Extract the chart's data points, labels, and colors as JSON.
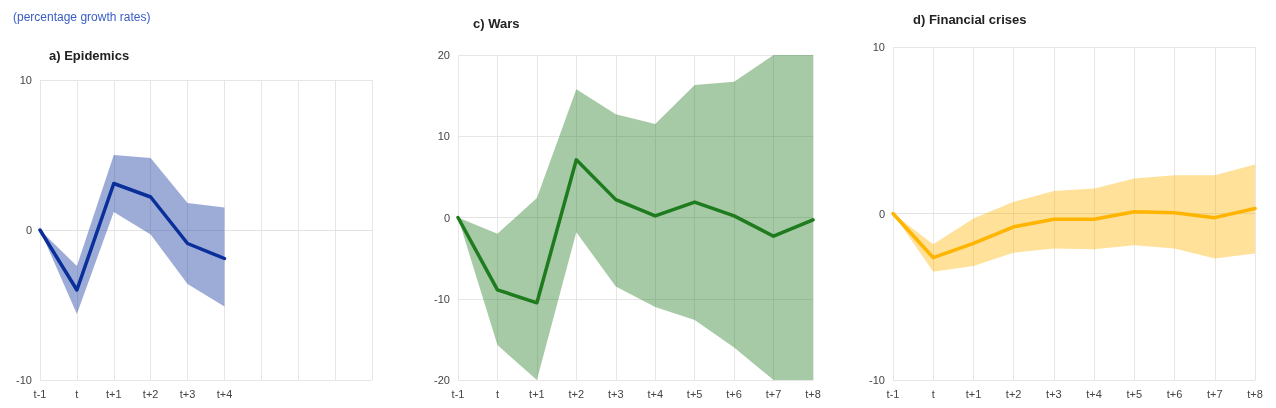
{
  "chart_data": [
    {
      "type": "line",
      "title": "a) Epidemics",
      "subtitle": "(percentage growth rates)",
      "categories": [
        "t-1",
        "t",
        "t+1",
        "t+2",
        "t+3",
        "t+4",
        null,
        null,
        null,
        null
      ],
      "series": [
        {
          "color": "#0a2f9a",
          "values": [
            0,
            -4,
            3.1,
            2.2,
            -0.9,
            -1.9,
            null,
            null,
            null,
            null
          ],
          "lower": [
            0,
            -5.6,
            1.2,
            -0.3,
            -3.6,
            -5.1,
            null,
            null,
            null,
            null
          ],
          "upper": [
            0,
            -2.4,
            5.0,
            4.8,
            1.8,
            1.5,
            null,
            null,
            null,
            null
          ]
        }
      ],
      "ylim": [
        -10,
        10
      ],
      "yticks": [
        -10,
        0,
        10
      ],
      "grid": true,
      "marker": "none"
    },
    {
      "type": "line",
      "title": "c) Wars",
      "categories": [
        "t-1",
        "t",
        "t+1",
        "t+2",
        "t+3",
        "t+4",
        "t+5",
        "t+6",
        "t+7",
        "t+8"
      ],
      "series": [
        {
          "color": "#1e7b1e",
          "values": [
            0,
            -8.9,
            -10.5,
            7.1,
            2.2,
            0.2,
            1.9,
            0.2,
            -2.3,
            -0.3
          ],
          "lower": [
            0,
            -15.7,
            -20,
            -1.8,
            -8.5,
            -11,
            -12.6,
            -16,
            -20,
            -20
          ],
          "upper": [
            0,
            -2,
            2.4,
            15.8,
            12.7,
            11.5,
            16.3,
            16.7,
            20,
            20
          ]
        }
      ],
      "ylim": [
        -20,
        20
      ],
      "yticks": [
        -20,
        -10,
        0,
        10,
        20
      ],
      "grid": true,
      "marker": "none"
    },
    {
      "type": "line",
      "title": "d) Financial crises",
      "categories": [
        "t-1",
        "t",
        "t+1",
        "t+2",
        "t+3",
        "t+4",
        "t+5",
        "t+6",
        "t+7",
        "t+8"
      ],
      "series": [
        {
          "color": "#ffb400",
          "values": [
            0,
            -2.65,
            -1.8,
            -0.8,
            -0.35,
            -0.35,
            0.1,
            0.05,
            -0.25,
            0.3
          ],
          "lower": [
            0,
            -3.5,
            -3.15,
            -2.35,
            -2.1,
            -2.15,
            -1.9,
            -2.1,
            -2.7,
            -2.4
          ],
          "upper": [
            0,
            -1.85,
            -0.3,
            0.7,
            1.35,
            1.5,
            2.1,
            2.3,
            2.3,
            2.95
          ]
        }
      ],
      "ylim": [
        -10,
        10
      ],
      "yticks": [
        -10,
        0,
        10
      ],
      "grid": true,
      "marker": "none"
    }
  ]
}
